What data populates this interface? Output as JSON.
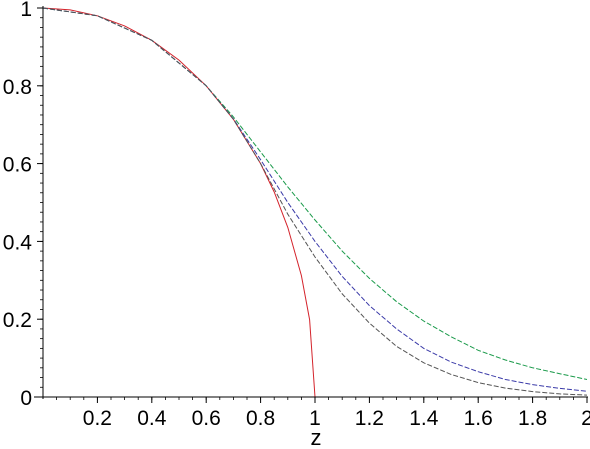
{
  "chart_data": {
    "type": "line",
    "title": "",
    "xlabel": "z",
    "ylabel": "",
    "xlim": [
      0,
      2
    ],
    "ylim": [
      0,
      1
    ],
    "grid": false,
    "legend": "none",
    "x_ticks": [
      {
        "value": 0.2,
        "label": "0.2"
      },
      {
        "value": 0.4,
        "label": "0.4"
      },
      {
        "value": 0.6,
        "label": "0.6"
      },
      {
        "value": 0.8,
        "label": "0.8"
      },
      {
        "value": 1.0,
        "label": "1"
      },
      {
        "value": 1.2,
        "label": "1.2"
      },
      {
        "value": 1.4,
        "label": "1.4"
      },
      {
        "value": 1.6,
        "label": "1.6"
      },
      {
        "value": 1.8,
        "label": "1.8"
      },
      {
        "value": 2.0,
        "label": "2"
      }
    ],
    "y_ticks": [
      {
        "value": 0.0,
        "label": "0"
      },
      {
        "value": 0.2,
        "label": "0.2"
      },
      {
        "value": 0.4,
        "label": "0.4"
      },
      {
        "value": 0.6,
        "label": "0.6"
      },
      {
        "value": 0.8,
        "label": "0.8"
      },
      {
        "value": 1.0,
        "label": "1"
      }
    ],
    "series": [
      {
        "color": "#d4232b",
        "style": "solid",
        "x": [
          0,
          0.1,
          0.2,
          0.3,
          0.4,
          0.5,
          0.6,
          0.7,
          0.8,
          0.85,
          0.9,
          0.95,
          0.98,
          1.0
        ],
        "y": [
          1,
          0.995,
          0.98,
          0.954,
          0.917,
          0.866,
          0.8,
          0.714,
          0.6,
          0.527,
          0.436,
          0.312,
          0.199,
          0
        ]
      },
      {
        "color": "#1a9a4a",
        "style": "dashed",
        "x": [
          0,
          0.2,
          0.4,
          0.6,
          0.7,
          0.8,
          0.9,
          1.0,
          1.1,
          1.2,
          1.3,
          1.4,
          1.5,
          1.6,
          1.7,
          1.8,
          1.9,
          2.0
        ],
        "y": [
          1,
          0.98,
          0.917,
          0.8,
          0.72,
          0.63,
          0.54,
          0.455,
          0.375,
          0.305,
          0.245,
          0.195,
          0.155,
          0.12,
          0.095,
          0.075,
          0.06,
          0.045
        ]
      },
      {
        "color": "#3a3aa8",
        "style": "dashed",
        "x": [
          0,
          0.2,
          0.4,
          0.6,
          0.7,
          0.8,
          0.9,
          1.0,
          1.1,
          1.2,
          1.3,
          1.4,
          1.5,
          1.6,
          1.7,
          1.8,
          1.9,
          2.0
        ],
        "y": [
          1,
          0.98,
          0.917,
          0.8,
          0.715,
          0.61,
          0.5,
          0.4,
          0.31,
          0.235,
          0.175,
          0.125,
          0.09,
          0.065,
          0.045,
          0.032,
          0.022,
          0.015
        ]
      },
      {
        "color": "#555555",
        "style": "dashed",
        "x": [
          0,
          0.2,
          0.4,
          0.6,
          0.7,
          0.8,
          0.9,
          1.0,
          1.1,
          1.2,
          1.3,
          1.4,
          1.5,
          1.6,
          1.7,
          1.8,
          1.9,
          2.0
        ],
        "y": [
          1,
          0.98,
          0.917,
          0.8,
          0.714,
          0.6,
          0.47,
          0.36,
          0.265,
          0.19,
          0.13,
          0.088,
          0.058,
          0.037,
          0.023,
          0.014,
          0.008,
          0.005
        ]
      }
    ]
  }
}
